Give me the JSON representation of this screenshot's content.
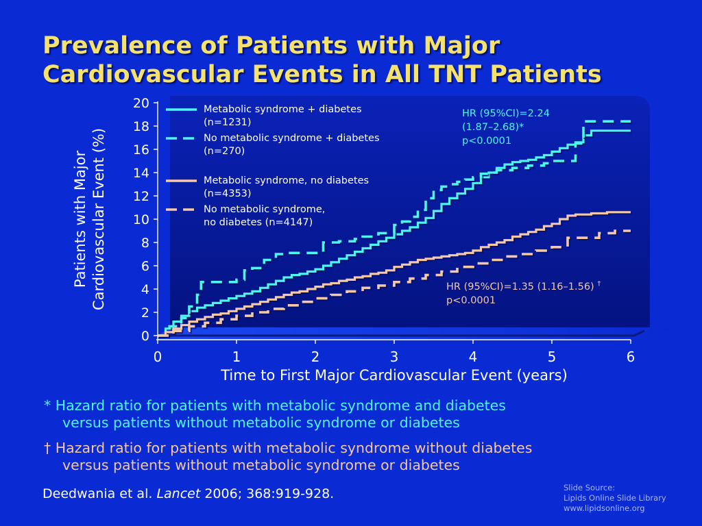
{
  "slide": {
    "title_line1": "Prevalence of Patients with Major",
    "title_line2": "Cardiovascular Events in All TNT Patients",
    "hr_top": {
      "line1": "HR (95%CI)=2.24",
      "line2": "(1.87–2.68)*",
      "line3": "p<0.0001"
    },
    "hr_bottom": {
      "line1": "HR (95%CI)=1.35 (1.16–1.56) ",
      "mark": "†",
      "line2": "p<0.0001"
    },
    "notes": [
      {
        "line1": "* Hazard ratio for patients with metabolic syndrome and diabetes",
        "line2": "versus patients without metabolic syndrome or diabetes"
      },
      {
        "line1": "† Hazard ratio for patients with metabolic syndrome without diabetes",
        "line2": "versus patients without metabolic syndrome or diabetes"
      }
    ],
    "citation": {
      "authors": "Deedwania et al. ",
      "journal": "Lancet",
      "rest": " 2006; 368:919-928."
    },
    "source": {
      "line1": "Slide Source:",
      "line2": "Lipids Online Slide Library",
      "line3": "www.lipidsonline.org"
    }
  },
  "colors": {
    "background": "#0a2bd4",
    "title": "#f4e26c",
    "cyan": "#4ff5f2",
    "peach": "#f5c9a8",
    "plot_panel": "#06179c"
  },
  "chart_data": {
    "type": "line",
    "title": "",
    "xlabel": "Time to First Major Cardiovascular Event (years)",
    "ylabel_line1": "Patients with Major",
    "ylabel_line2": "Cardiovascular Event (%)",
    "xlim": [
      0,
      6
    ],
    "ylim": [
      0,
      20
    ],
    "xticks": [
      "0",
      "1",
      "2",
      "3",
      "4",
      "5",
      "6"
    ],
    "yticks": [
      "0",
      "2",
      "4",
      "6",
      "8",
      "10",
      "12",
      "14",
      "16",
      "18",
      "20"
    ],
    "legend_position": "top-left",
    "series": [
      {
        "name_line1": "Metabolic syndrome + diabetes",
        "name_line2": "(n=1231)",
        "color": "#4ff5f2",
        "style": "solid",
        "x": [
          0,
          0.1,
          0.2,
          0.3,
          0.4,
          0.5,
          0.6,
          0.7,
          0.8,
          0.9,
          1.0,
          1.1,
          1.2,
          1.3,
          1.4,
          1.5,
          1.6,
          1.7,
          1.8,
          1.9,
          2.0,
          2.1,
          2.2,
          2.3,
          2.4,
          2.5,
          2.6,
          2.7,
          2.8,
          2.9,
          3.0,
          3.1,
          3.2,
          3.3,
          3.4,
          3.5,
          3.6,
          3.7,
          3.8,
          3.9,
          4.0,
          4.1,
          4.2,
          4.3,
          4.4,
          4.5,
          4.6,
          4.7,
          4.8,
          4.9,
          5.0,
          5.1,
          5.2,
          5.3,
          5.4,
          5.5,
          5.6,
          5.7,
          5.8,
          5.9,
          6.0
        ],
        "y": [
          0,
          0.6,
          1.2,
          1.7,
          2.1,
          2.4,
          2.6,
          2.8,
          3.0,
          3.2,
          3.4,
          3.6,
          3.8,
          4.1,
          4.4,
          4.7,
          5.0,
          5.2,
          5.3,
          5.5,
          5.7,
          6.0,
          6.3,
          6.6,
          6.9,
          7.2,
          7.5,
          7.8,
          8.1,
          8.4,
          8.7,
          9.0,
          9.3,
          9.7,
          10.1,
          10.7,
          11.3,
          11.8,
          12.2,
          12.6,
          13.1,
          13.6,
          14.0,
          14.4,
          14.7,
          14.9,
          15.0,
          15.1,
          15.3,
          15.5,
          15.8,
          16.1,
          16.4,
          16.6,
          17.2,
          17.6,
          17.6,
          17.6,
          17.6,
          17.6,
          17.6
        ]
      },
      {
        "name_line1": "No metabolic syndrome + diabetes",
        "name_line2": "(n=270)",
        "color": "#4ff5f2",
        "style": "dashed",
        "x": [
          0,
          0.15,
          0.3,
          0.4,
          0.5,
          0.55,
          0.65,
          0.8,
          1.0,
          1.1,
          1.2,
          1.35,
          1.5,
          1.6,
          1.8,
          2.0,
          2.1,
          2.3,
          2.5,
          2.6,
          2.8,
          3.0,
          3.1,
          3.2,
          3.3,
          3.4,
          3.5,
          3.6,
          3.7,
          3.8,
          3.9,
          4.0,
          4.1,
          4.2,
          4.3,
          4.5,
          4.7,
          4.9,
          5.0,
          5.1,
          5.2,
          5.3,
          5.4,
          5.5,
          5.6,
          5.8,
          6.0
        ],
        "y": [
          0,
          0.8,
          1.5,
          2.5,
          3.5,
          4.6,
          4.6,
          4.6,
          4.8,
          5.6,
          5.8,
          6.5,
          7.0,
          7.1,
          7.1,
          7.1,
          8.0,
          8.1,
          8.3,
          8.5,
          8.8,
          9.5,
          9.8,
          10.2,
          10.8,
          11.8,
          12.5,
          12.8,
          13.0,
          13.2,
          13.4,
          13.6,
          13.9,
          14.0,
          14.2,
          14.4,
          14.6,
          14.8,
          15.0,
          15.0,
          15.0,
          16.5,
          18.4,
          18.4,
          18.4,
          18.4,
          18.4
        ]
      },
      {
        "name_line1": "Metabolic syndrome, no diabetes",
        "name_line2": "(n=4353)",
        "color": "#f5c9a8",
        "style": "solid",
        "x": [
          0,
          0.1,
          0.2,
          0.3,
          0.4,
          0.5,
          0.6,
          0.7,
          0.8,
          0.9,
          1.0,
          1.1,
          1.2,
          1.3,
          1.4,
          1.5,
          1.6,
          1.7,
          1.8,
          1.9,
          2.0,
          2.1,
          2.2,
          2.3,
          2.4,
          2.5,
          2.6,
          2.7,
          2.8,
          2.9,
          3.0,
          3.1,
          3.2,
          3.3,
          3.4,
          3.5,
          3.6,
          3.7,
          3.8,
          3.9,
          4.0,
          4.1,
          4.2,
          4.3,
          4.4,
          4.5,
          4.6,
          4.7,
          4.8,
          4.9,
          5.0,
          5.1,
          5.2,
          5.3,
          5.4,
          5.5,
          5.6,
          5.7,
          5.8,
          5.9,
          6.0
        ],
        "y": [
          0,
          0.3,
          0.6,
          0.9,
          1.2,
          1.4,
          1.6,
          1.8,
          1.9,
          2.1,
          2.3,
          2.5,
          2.7,
          2.9,
          3.1,
          3.3,
          3.5,
          3.7,
          3.8,
          4.0,
          4.2,
          4.4,
          4.5,
          4.7,
          4.8,
          5.0,
          5.1,
          5.3,
          5.4,
          5.6,
          5.9,
          6.1,
          6.3,
          6.5,
          6.6,
          6.7,
          6.8,
          6.9,
          7.0,
          7.1,
          7.3,
          7.6,
          7.8,
          8.0,
          8.2,
          8.5,
          8.7,
          8.9,
          9.1,
          9.4,
          9.6,
          10.0,
          10.3,
          10.4,
          10.4,
          10.5,
          10.5,
          10.6,
          10.6,
          10.6,
          10.6
        ]
      },
      {
        "name_line1": "No metabolic syndrome,",
        "name_line2": "no diabetes (n=4147)",
        "color": "#f5c9a8",
        "style": "dashed",
        "x": [
          0,
          0.2,
          0.4,
          0.6,
          0.8,
          1.0,
          1.2,
          1.4,
          1.6,
          1.8,
          2.0,
          2.2,
          2.4,
          2.6,
          2.8,
          3.0,
          3.2,
          3.4,
          3.6,
          3.8,
          4.0,
          4.2,
          4.4,
          4.6,
          4.8,
          5.0,
          5.2,
          5.4,
          5.6,
          5.8,
          6.0
        ],
        "y": [
          0,
          0.4,
          0.8,
          1.1,
          1.4,
          1.7,
          2.0,
          2.3,
          2.6,
          2.9,
          3.2,
          3.5,
          3.8,
          4.1,
          4.3,
          4.6,
          4.9,
          5.2,
          5.5,
          5.9,
          6.2,
          6.5,
          6.8,
          7.0,
          7.3,
          7.6,
          8.4,
          8.4,
          8.8,
          9.0,
          9.0
        ]
      }
    ]
  }
}
